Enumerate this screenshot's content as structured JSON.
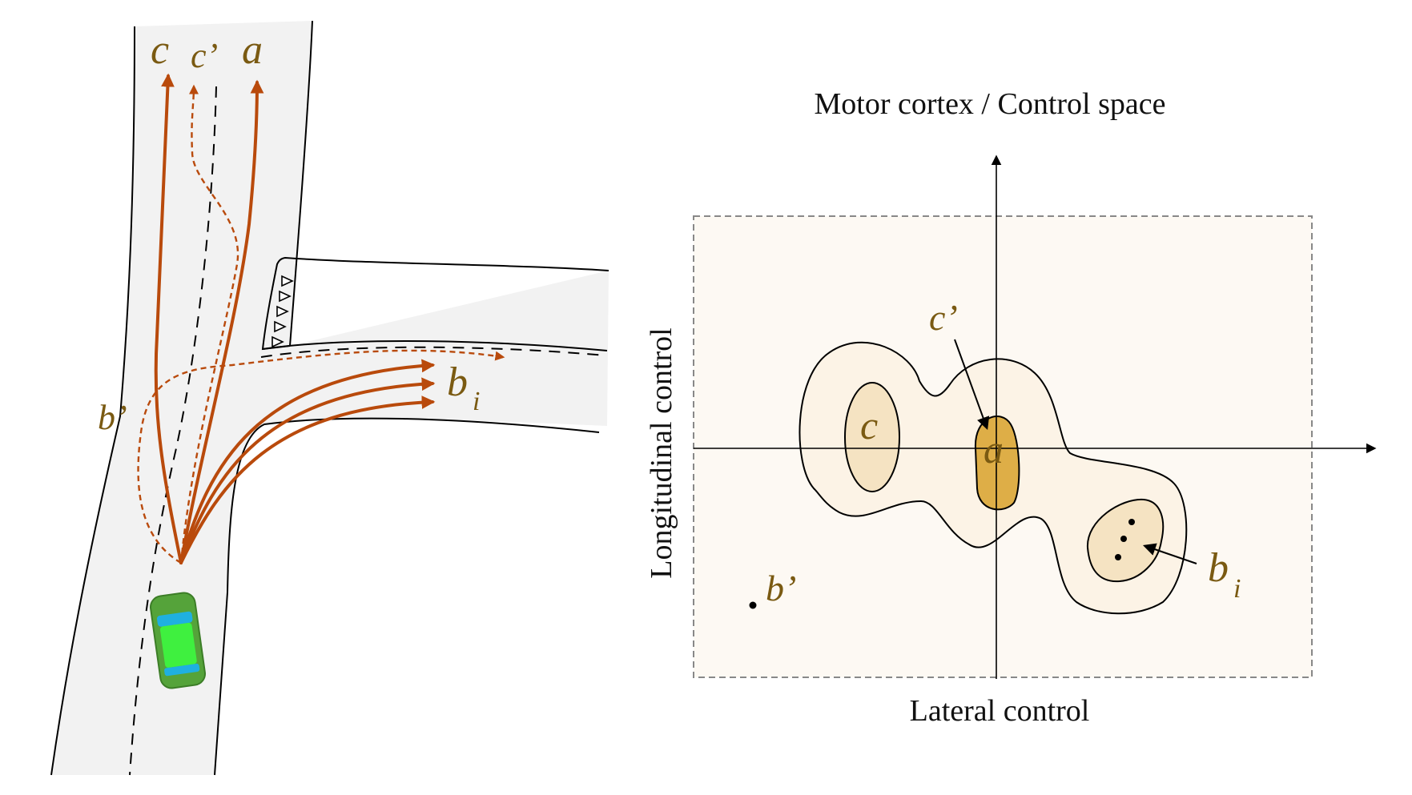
{
  "colors": {
    "road_fill": "#f2f2f2",
    "road_edge": "#000000",
    "trajectory": "#b94a0c",
    "label_text": "#7a5a12",
    "panel_fill": "#fdf9f3",
    "contour_outer": "#fcf3e6",
    "contour_mid": "#f5e3c2",
    "contour_peak": "#deae47",
    "car_body": "#55a33a",
    "car_window": "#1fb0e0",
    "car_roof": "#3ff03f"
  },
  "road_scene": {
    "labels": {
      "c": "c",
      "c_prime": "c’",
      "a": "a",
      "b": "b",
      "b_sub": "i",
      "b_prime": "b’"
    }
  },
  "control_space": {
    "title": "Motor cortex / Control space",
    "x_axis_label": "Lateral control",
    "y_axis_label": "Longitudinal control",
    "labels": {
      "c": "c",
      "a": "a",
      "c_prime": "c’",
      "b": "b",
      "b_sub": "i",
      "b_prime": "b’"
    }
  }
}
